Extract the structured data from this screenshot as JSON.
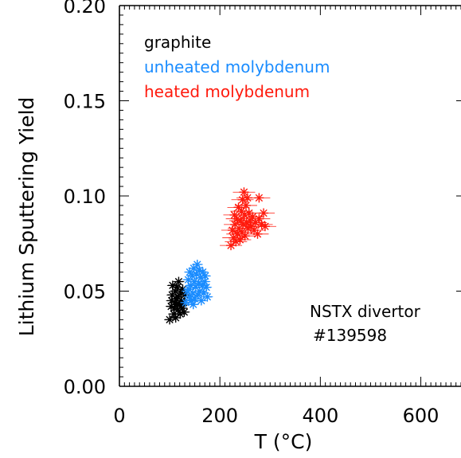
{
  "chart_data": {
    "type": "scatter",
    "xlabel": "T (°C)",
    "ylabel": "Lithium Sputtering Yield",
    "xlim": [
      0,
      680
    ],
    "ylim": [
      0,
      0.2
    ],
    "x_ticks": [
      "0",
      "200",
      "400",
      "600"
    ],
    "x_tick_values": [
      0,
      200,
      400,
      600
    ],
    "y_ticks": [
      "0.00",
      "0.05",
      "0.10",
      "0.15",
      "0.20"
    ],
    "y_tick_values": [
      0,
      0.05,
      0.1,
      0.15,
      0.2
    ],
    "legend_placement": "top-left",
    "annotation": {
      "line1": "NSTX divertor",
      "line2": "#139598"
    },
    "series": [
      {
        "name": "graphite",
        "color": "#000000",
        "points": [
          [
            100,
            0.035
          ],
          [
            103,
            0.042
          ],
          [
            105,
            0.048
          ],
          [
            106,
            0.053
          ],
          [
            108,
            0.038
          ],
          [
            110,
            0.044
          ],
          [
            111,
            0.05
          ],
          [
            112,
            0.036
          ],
          [
            113,
            0.046
          ],
          [
            115,
            0.052
          ],
          [
            116,
            0.04
          ],
          [
            117,
            0.047
          ],
          [
            118,
            0.055
          ],
          [
            120,
            0.043
          ],
          [
            121,
            0.038
          ],
          [
            122,
            0.049
          ],
          [
            124,
            0.045
          ],
          [
            125,
            0.041
          ],
          [
            126,
            0.051
          ],
          [
            128,
            0.044
          ],
          [
            129,
            0.039
          ],
          [
            130,
            0.048
          ],
          [
            104,
            0.045
          ],
          [
            109,
            0.041
          ],
          [
            114,
            0.043
          ]
        ]
      },
      {
        "name": "unheated molybdenum",
        "color": "#1a8cff",
        "points": [
          [
            132,
            0.044
          ],
          [
            135,
            0.05
          ],
          [
            137,
            0.056
          ],
          [
            139,
            0.047
          ],
          [
            140,
            0.06
          ],
          [
            142,
            0.053
          ],
          [
            143,
            0.045
          ],
          [
            145,
            0.058
          ],
          [
            146,
            0.049
          ],
          [
            148,
            0.062
          ],
          [
            149,
            0.055
          ],
          [
            150,
            0.046
          ],
          [
            152,
            0.052
          ],
          [
            153,
            0.059
          ],
          [
            155,
            0.064
          ],
          [
            156,
            0.048
          ],
          [
            158,
            0.054
          ],
          [
            159,
            0.061
          ],
          [
            160,
            0.05
          ],
          [
            162,
            0.057
          ],
          [
            163,
            0.045
          ],
          [
            165,
            0.053
          ],
          [
            166,
            0.06
          ],
          [
            168,
            0.049
          ],
          [
            170,
            0.055
          ],
          [
            171,
            0.058
          ],
          [
            173,
            0.052
          ],
          [
            175,
            0.047
          ],
          [
            138,
            0.051
          ],
          [
            147,
            0.043
          ]
        ]
      },
      {
        "name": "heated molybdenum",
        "color": "#ff1a0d",
        "points": [
          [
            222,
            0.074
          ],
          [
            225,
            0.082
          ],
          [
            227,
            0.078
          ],
          [
            229,
            0.09
          ],
          [
            230,
            0.085
          ],
          [
            232,
            0.076
          ],
          [
            234,
            0.088
          ],
          [
            235,
            0.08
          ],
          [
            237,
            0.094
          ],
          [
            238,
            0.083
          ],
          [
            240,
            0.077
          ],
          [
            241,
            0.087
          ],
          [
            243,
            0.092
          ],
          [
            244,
            0.081
          ],
          [
            245,
            0.098
          ],
          [
            246,
            0.085
          ],
          [
            248,
            0.102
          ],
          [
            249,
            0.09
          ],
          [
            250,
            0.079
          ],
          [
            252,
            0.095
          ],
          [
            253,
            0.086
          ],
          [
            255,
            0.099
          ],
          [
            256,
            0.083
          ],
          [
            258,
            0.091
          ],
          [
            260,
            0.087
          ],
          [
            262,
            0.084
          ],
          [
            265,
            0.089
          ],
          [
            268,
            0.082
          ],
          [
            271,
            0.086
          ],
          [
            275,
            0.08
          ],
          [
            278,
            0.088
          ],
          [
            283,
            0.085
          ],
          [
            287,
            0.091
          ],
          [
            290,
            0.084
          ],
          [
            278,
            0.099
          ]
        ]
      }
    ]
  }
}
